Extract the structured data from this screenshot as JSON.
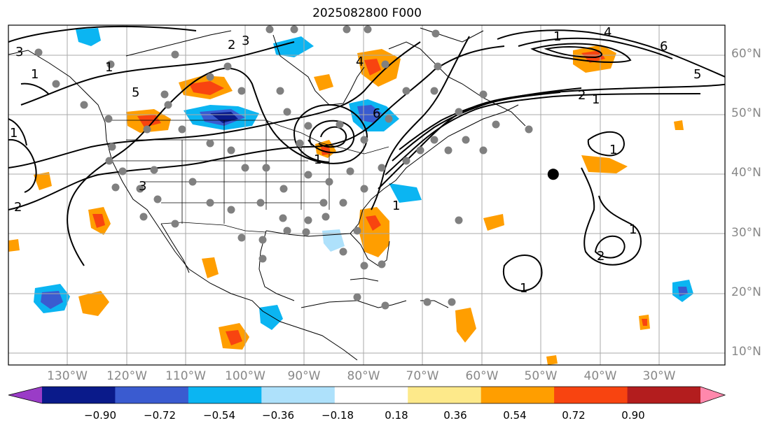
{
  "title": "2025082800 F000",
  "lat_labels": [
    "60°N",
    "50°N",
    "40°N",
    "30°N",
    "20°N",
    "10°N"
  ],
  "lon_labels": [
    "130°W",
    "120°W",
    "110°W",
    "100°W",
    "90°W",
    "80°W",
    "70°W",
    "60°W",
    "50°W",
    "40°W",
    "30°W"
  ],
  "map_extent": {
    "lon_min": -139,
    "lon_max": -18,
    "lat_min": 8,
    "lat_max": 65
  },
  "contour_labels": [
    "3",
    "2",
    "3",
    "1",
    "5",
    "6",
    "4",
    "1",
    "2",
    "1",
    "6",
    "5",
    "2",
    "1",
    "1",
    "1",
    "2",
    "1",
    "1",
    "1",
    "4",
    "3",
    "1"
  ],
  "colorbar": {
    "ticks": [
      "−0.90",
      "−0.72",
      "−0.54",
      "−0.36",
      "−0.18",
      "0.18",
      "0.36",
      "0.54",
      "0.72",
      "0.90"
    ],
    "colors": [
      "#9a3cc7",
      "#0a1a8a",
      "#3a5bd0",
      "#0bb5f2",
      "#aee1fb",
      "#ffffff",
      "#fde98a",
      "#ff9e00",
      "#f84410",
      "#b31d1e",
      "#ff88ac"
    ]
  },
  "marker": {
    "name": "black-dot",
    "lon": -47,
    "lat": 40,
    "color": "#000000"
  },
  "station_color": "#808080"
}
